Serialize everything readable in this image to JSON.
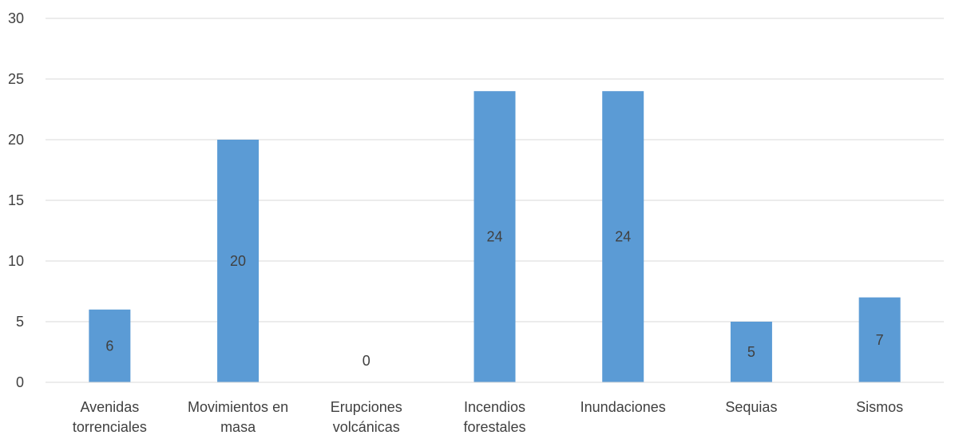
{
  "chart_data": {
    "type": "bar",
    "title": "",
    "xlabel": "",
    "ylabel": "",
    "categories": [
      [
        "Avenidas",
        "torrenciales"
      ],
      [
        "Movimientos en",
        "masa"
      ],
      [
        "Erupciones",
        "volcánicas"
      ],
      [
        "Incendios",
        "forestales"
      ],
      [
        "Inundaciones"
      ],
      [
        "Sequias"
      ],
      [
        "Sismos"
      ]
    ],
    "values": [
      6,
      20,
      0,
      24,
      24,
      5,
      7
    ],
    "ylim": [
      0,
      30
    ],
    "yticks": [
      0,
      5,
      10,
      15,
      20,
      25,
      30
    ],
    "grid": true,
    "legend": "none",
    "bar_color": "#5b9bd5",
    "text_color": "#404040",
    "grid_color": "#d9d9d9"
  }
}
